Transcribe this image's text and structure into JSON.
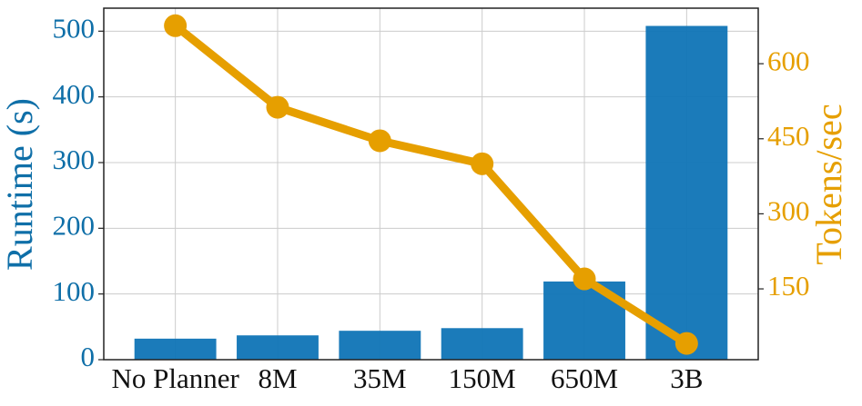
{
  "chart_data": {
    "type": "bar",
    "categories": [
      "No Planner",
      "8M",
      "35M",
      "150M",
      "650M",
      "3B"
    ],
    "series": [
      {
        "type": "bar",
        "color": "#0f74b6",
        "values": [
          32,
          37,
          44,
          48,
          119,
          508
        ]
      },
      {
        "type": "line",
        "axis": "y2",
        "color": "#e69f00",
        "values": [
          676,
          513,
          446,
          400,
          170,
          41
        ]
      }
    ],
    "ylabel": "Runtime (s)",
    "y2label": "Tokens/sec",
    "ylim": [
      0,
      535
    ],
    "yticks": [
      0,
      100,
      200,
      300,
      400,
      500
    ],
    "y2lim": [
      8.5,
      711
    ],
    "y2ticks": [
      150,
      300,
      450,
      600
    ],
    "ycolor": "#0f6fa8",
    "y2color": "#e69f00",
    "grid": true
  }
}
